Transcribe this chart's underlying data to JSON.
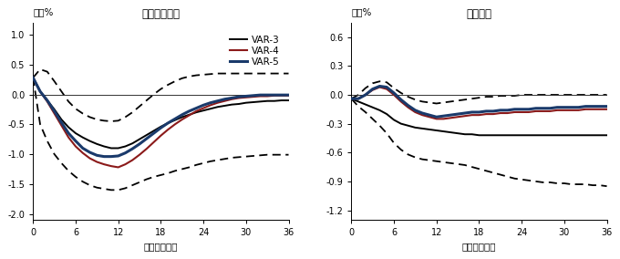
{
  "left_title": "経済活動指数",
  "right_title": "雇用者数",
  "unit_label": "単位%",
  "xlabel": "経過した月数",
  "x": [
    0,
    1,
    2,
    3,
    4,
    5,
    6,
    7,
    8,
    9,
    10,
    11,
    12,
    13,
    14,
    15,
    16,
    17,
    18,
    19,
    20,
    21,
    22,
    23,
    24,
    25,
    26,
    27,
    28,
    29,
    30,
    31,
    32,
    33,
    34,
    35,
    36
  ],
  "left_var3": [
    0.28,
    0.05,
    -0.1,
    -0.25,
    -0.42,
    -0.55,
    -0.65,
    -0.72,
    -0.78,
    -0.83,
    -0.87,
    -0.9,
    -0.9,
    -0.87,
    -0.82,
    -0.75,
    -0.68,
    -0.61,
    -0.54,
    -0.48,
    -0.43,
    -0.38,
    -0.34,
    -0.3,
    -0.27,
    -0.24,
    -0.21,
    -0.19,
    -0.17,
    -0.16,
    -0.14,
    -0.13,
    -0.12,
    -0.11,
    -0.11,
    -0.1,
    -0.1
  ],
  "left_var4": [
    0.28,
    0.05,
    -0.12,
    -0.32,
    -0.52,
    -0.72,
    -0.87,
    -0.98,
    -1.07,
    -1.13,
    -1.17,
    -1.2,
    -1.22,
    -1.17,
    -1.1,
    -1.01,
    -0.91,
    -0.8,
    -0.69,
    -0.59,
    -0.5,
    -0.42,
    -0.35,
    -0.28,
    -0.23,
    -0.18,
    -0.14,
    -0.11,
    -0.08,
    -0.06,
    -0.05,
    -0.04,
    -0.03,
    -0.03,
    -0.02,
    -0.02,
    -0.02
  ],
  "left_var5": [
    0.28,
    0.05,
    -0.1,
    -0.28,
    -0.47,
    -0.65,
    -0.78,
    -0.9,
    -0.97,
    -1.02,
    -1.04,
    -1.04,
    -1.03,
    -0.98,
    -0.91,
    -0.83,
    -0.74,
    -0.65,
    -0.56,
    -0.48,
    -0.41,
    -0.34,
    -0.28,
    -0.23,
    -0.18,
    -0.14,
    -0.11,
    -0.08,
    -0.06,
    -0.04,
    -0.03,
    -0.02,
    -0.01,
    -0.01,
    -0.01,
    -0.01,
    -0.01
  ],
  "left_upper": [
    0.28,
    0.42,
    0.38,
    0.22,
    0.05,
    -0.12,
    -0.24,
    -0.32,
    -0.38,
    -0.42,
    -0.44,
    -0.45,
    -0.44,
    -0.38,
    -0.3,
    -0.2,
    -0.1,
    0.0,
    0.09,
    0.16,
    0.22,
    0.27,
    0.3,
    0.32,
    0.33,
    0.34,
    0.35,
    0.35,
    0.35,
    0.35,
    0.35,
    0.35,
    0.35,
    0.35,
    0.35,
    0.35,
    0.35
  ],
  "left_lower": [
    0.28,
    -0.5,
    -0.78,
    -1.0,
    -1.15,
    -1.28,
    -1.38,
    -1.46,
    -1.52,
    -1.56,
    -1.58,
    -1.6,
    -1.6,
    -1.57,
    -1.52,
    -1.47,
    -1.42,
    -1.38,
    -1.35,
    -1.32,
    -1.28,
    -1.25,
    -1.22,
    -1.18,
    -1.15,
    -1.12,
    -1.1,
    -1.08,
    -1.06,
    -1.05,
    -1.04,
    -1.03,
    -1.02,
    -1.01,
    -1.01,
    -1.01,
    -1.01
  ],
  "right_var3": [
    -0.04,
    -0.07,
    -0.1,
    -0.13,
    -0.16,
    -0.2,
    -0.26,
    -0.3,
    -0.32,
    -0.34,
    -0.35,
    -0.36,
    -0.37,
    -0.38,
    -0.39,
    -0.4,
    -0.41,
    -0.41,
    -0.42,
    -0.42,
    -0.42,
    -0.42,
    -0.42,
    -0.42,
    -0.42,
    -0.42,
    -0.42,
    -0.42,
    -0.42,
    -0.42,
    -0.42,
    -0.42,
    -0.42,
    -0.42,
    -0.42,
    -0.42,
    -0.42
  ],
  "right_var4": [
    -0.04,
    -0.04,
    0.0,
    0.05,
    0.08,
    0.06,
    0.0,
    -0.07,
    -0.13,
    -0.18,
    -0.21,
    -0.23,
    -0.25,
    -0.25,
    -0.24,
    -0.23,
    -0.22,
    -0.21,
    -0.21,
    -0.2,
    -0.2,
    -0.19,
    -0.19,
    -0.18,
    -0.18,
    -0.18,
    -0.17,
    -0.17,
    -0.17,
    -0.16,
    -0.16,
    -0.16,
    -0.16,
    -0.15,
    -0.15,
    -0.15,
    -0.15
  ],
  "right_var5": [
    -0.04,
    -0.04,
    0.0,
    0.06,
    0.09,
    0.08,
    0.02,
    -0.05,
    -0.11,
    -0.16,
    -0.19,
    -0.21,
    -0.23,
    -0.22,
    -0.21,
    -0.2,
    -0.19,
    -0.18,
    -0.18,
    -0.17,
    -0.17,
    -0.16,
    -0.16,
    -0.15,
    -0.15,
    -0.15,
    -0.14,
    -0.14,
    -0.14,
    -0.13,
    -0.13,
    -0.13,
    -0.13,
    -0.12,
    -0.12,
    -0.12,
    -0.12
  ],
  "right_upper": [
    -0.04,
    0.0,
    0.07,
    0.12,
    0.14,
    0.13,
    0.07,
    0.02,
    -0.02,
    -0.05,
    -0.07,
    -0.08,
    -0.09,
    -0.08,
    -0.07,
    -0.06,
    -0.05,
    -0.04,
    -0.03,
    -0.02,
    -0.02,
    -0.01,
    -0.01,
    -0.01,
    0.0,
    0.0,
    0.0,
    0.0,
    0.0,
    0.0,
    0.0,
    0.0,
    0.0,
    0.0,
    0.0,
    0.0,
    0.0
  ],
  "right_lower": [
    -0.04,
    -0.12,
    -0.18,
    -0.25,
    -0.32,
    -0.4,
    -0.5,
    -0.57,
    -0.62,
    -0.65,
    -0.67,
    -0.68,
    -0.69,
    -0.7,
    -0.71,
    -0.72,
    -0.73,
    -0.75,
    -0.77,
    -0.79,
    -0.81,
    -0.83,
    -0.85,
    -0.87,
    -0.88,
    -0.89,
    -0.9,
    -0.91,
    -0.91,
    -0.92,
    -0.92,
    -0.93,
    -0.93,
    -0.93,
    -0.94,
    -0.94,
    -0.95
  ],
  "color_var3": "#000000",
  "color_var4": "#8B1A1A",
  "color_var5": "#1A3A6B",
  "color_ci": "#000000",
  "background": "#ffffff",
  "xticks": [
    0,
    6,
    12,
    18,
    24,
    30,
    36
  ],
  "left_ylim": [
    -2.1,
    1.2
  ],
  "left_yticks": [
    -2,
    -1.5,
    -1,
    -0.5,
    0,
    0.5,
    1
  ],
  "right_ylim": [
    -1.3,
    0.75
  ],
  "right_yticks": [
    -1.2,
    -0.9,
    -0.6,
    -0.3,
    0,
    0.3,
    0.6
  ]
}
